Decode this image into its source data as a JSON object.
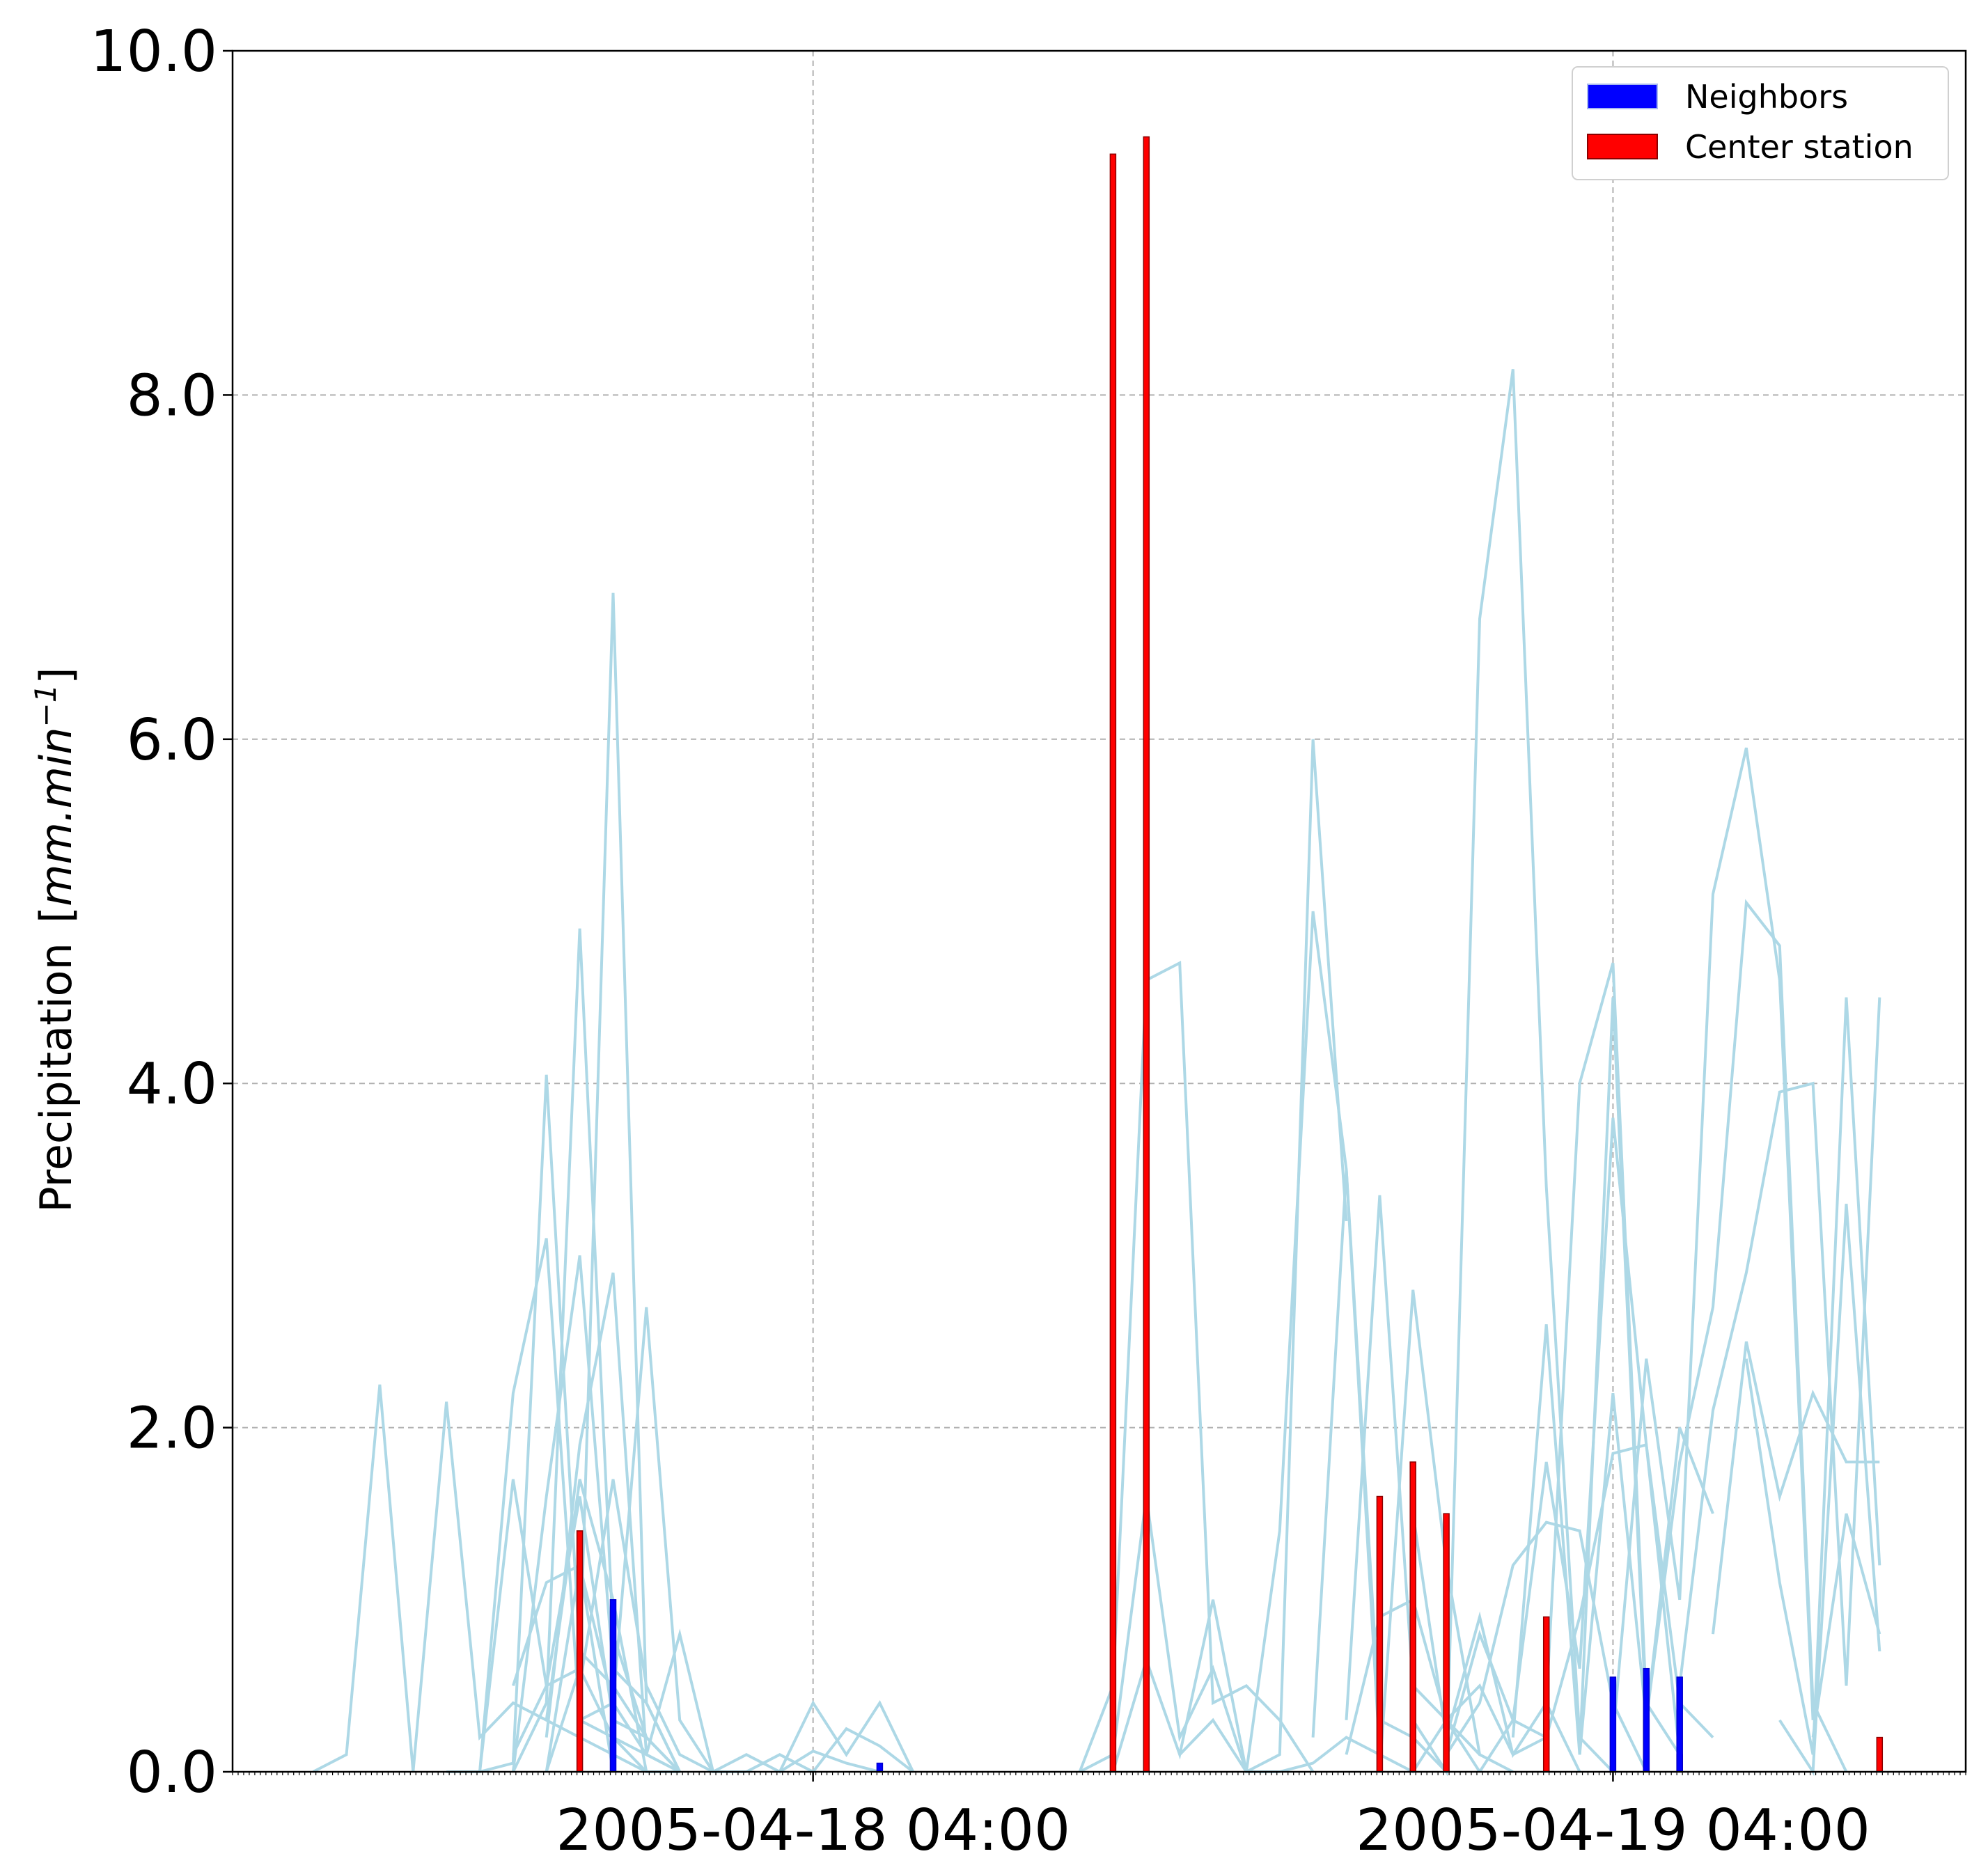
{
  "chart_data": {
    "type": "bar",
    "title": "",
    "xlabel": "",
    "ylabel": "Precipitation",
    "ylabel_unit_math": "[mm.min⁻¹]",
    "ylabel_unit_parts": {
      "open": "[",
      "body": "mm.min",
      "sup": "−1",
      "close": "]"
    },
    "ylim": [
      0,
      10
    ],
    "y_ticks": [
      "0.0",
      "2.0",
      "4.0",
      "6.0",
      "8.0",
      "10.0"
    ],
    "x_unit": "minutes since 2005-04-17 10:35",
    "xlim": [
      0,
      3120
    ],
    "x_ticks": [
      {
        "label": "2005-04-18 04:00",
        "x": 1045
      },
      {
        "label": "2005-04-19 04:00",
        "x": 2485
      }
    ],
    "grid": true,
    "legend_position": "top-right",
    "legend": [
      {
        "label": "Neighbors",
        "color": "#0000ff",
        "edge": "#a8b8f0"
      },
      {
        "label": "Center station",
        "color": "#ff0000",
        "edge": "#8b0000"
      }
    ],
    "series": [
      {
        "name": "Center station",
        "kind": "bar",
        "color": "#ff0000",
        "points": [
          {
            "x": 625,
            "y": 1.4
          },
          {
            "x": 1585,
            "y": 9.4
          },
          {
            "x": 1645,
            "y": 9.5
          },
          {
            "x": 2065,
            "y": 1.6
          },
          {
            "x": 2125,
            "y": 1.8
          },
          {
            "x": 2185,
            "y": 1.5
          },
          {
            "x": 2365,
            "y": 0.9
          },
          {
            "x": 2545,
            "y": 0.3
          },
          {
            "x": 2605,
            "y": 0.1
          },
          {
            "x": 2965,
            "y": 0.2
          }
        ]
      },
      {
        "name": "Neighbors",
        "kind": "bar",
        "color": "#0000ff",
        "points": [
          {
            "x": 685,
            "y": 1.0
          },
          {
            "x": 1165,
            "y": 0.05
          },
          {
            "x": 2485,
            "y": 0.55
          },
          {
            "x": 2545,
            "y": 0.6
          },
          {
            "x": 2605,
            "y": 0.55
          }
        ]
      }
    ],
    "neighbor_lines": [
      {
        "x": [
          145,
          205,
          265,
          325,
          385,
          445,
          505,
          565,
          625,
          685,
          745,
          805
        ],
        "y": [
          0.0,
          0.1,
          2.25,
          0.0,
          2.15,
          0.2,
          0.4,
          0.3,
          0.2,
          0.1,
          0.0,
          0.0
        ]
      },
      {
        "x": [
          385,
          445,
          505,
          565,
          625,
          685,
          745
        ],
        "y": [
          0.0,
          0.0,
          1.7,
          0.5,
          0.6,
          0.2,
          0.0
        ]
      },
      {
        "x": [
          445,
          505,
          565,
          625,
          685,
          745,
          805
        ],
        "y": [
          0.0,
          0.05,
          4.05,
          0.7,
          0.5,
          0.2,
          0.0
        ]
      },
      {
        "x": [
          445,
          505,
          565,
          625,
          685,
          745,
          805
        ],
        "y": [
          0.0,
          2.2,
          3.1,
          0.3,
          0.4,
          0.1,
          0.0
        ]
      },
      {
        "x": [
          505,
          565,
          625,
          685,
          745,
          805
        ],
        "y": [
          0.0,
          0.4,
          4.9,
          0.8,
          0.2,
          0.0
        ]
      },
      {
        "x": [
          505,
          565,
          625,
          685,
          745,
          805
        ],
        "y": [
          0.0,
          1.6,
          3.0,
          0.6,
          0.4,
          0.0
        ]
      },
      {
        "x": [
          505,
          565,
          625,
          685,
          745,
          805
        ],
        "y": [
          0.1,
          0.5,
          1.6,
          0.3,
          0.2,
          0.0
        ]
      },
      {
        "x": [
          565,
          625,
          685,
          745,
          805
        ],
        "y": [
          0.0,
          0.6,
          6.85,
          0.4,
          0.0
        ]
      },
      {
        "x": [
          565,
          625,
          685,
          745,
          805
        ],
        "y": [
          0.2,
          1.9,
          2.9,
          0.1,
          0.0
        ]
      },
      {
        "x": [
          565,
          625,
          685,
          745,
          805,
          865
        ],
        "y": [
          0.0,
          1.2,
          0.4,
          2.7,
          0.3,
          0.0
        ]
      },
      {
        "x": [
          625,
          685,
          745,
          805,
          865
        ],
        "y": [
          0.5,
          1.7,
          0.5,
          0.1,
          0.0
        ]
      },
      {
        "x": [
          625,
          685,
          745,
          805,
          865,
          925
        ],
        "y": [
          0.3,
          0.2,
          0.1,
          0.8,
          0.0,
          0.0
        ]
      },
      {
        "x": [
          565,
          625,
          685,
          745
        ],
        "y": [
          0.3,
          1.7,
          1.0,
          0.0
        ]
      },
      {
        "x": [
          505,
          565,
          625,
          685
        ],
        "y": [
          0.5,
          1.1,
          1.2,
          0.0
        ]
      },
      {
        "x": [
          865,
          925,
          985,
          1045,
          1105,
          1165,
          1225
        ],
        "y": [
          0.0,
          0.1,
          0.0,
          0.4,
          0.1,
          0.4,
          0.0
        ]
      },
      {
        "x": [
          925,
          985,
          1045,
          1105,
          1165,
          1225
        ],
        "y": [
          0.0,
          0.1,
          0.0,
          0.25,
          0.15,
          0.0
        ]
      },
      {
        "x": [
          985,
          1045,
          1105,
          1165
        ],
        "y": [
          0.0,
          0.12,
          0.05,
          0.0
        ]
      },
      {
        "x": [
          1525,
          1585,
          1645,
          1705,
          1765,
          1825,
          1885,
          1945
        ],
        "y": [
          0.0,
          0.5,
          4.6,
          4.7,
          0.4,
          0.5,
          0.3,
          0.0
        ]
      },
      {
        "x": [
          1525,
          1585,
          1645,
          1705,
          1765,
          1825
        ],
        "y": [
          0.0,
          0.1,
          1.6,
          0.2,
          0.6,
          0.0
        ]
      },
      {
        "x": [
          1585,
          1645,
          1705,
          1765,
          1825,
          1885
        ],
        "y": [
          0.0,
          0.65,
          0.1,
          1.0,
          0.0,
          0.0
        ]
      },
      {
        "x": [
          1705,
          1765,
          1825,
          1885,
          1945,
          2005
        ],
        "y": [
          0.1,
          0.3,
          0.0,
          0.1,
          6.0,
          3.2
        ]
      },
      {
        "x": [
          1825,
          1885,
          1945,
          2005,
          2065
        ],
        "y": [
          0.0,
          1.4,
          5.0,
          3.5,
          0.1
        ]
      },
      {
        "x": [
          1945,
          2005,
          2065,
          2125,
          2185
        ],
        "y": [
          0.2,
          3.5,
          0.3,
          0.2,
          0.0
        ]
      },
      {
        "x": [
          2005,
          2065,
          2125,
          2185,
          2245
        ],
        "y": [
          0.3,
          3.35,
          0.5,
          0.3,
          0.1
        ]
      },
      {
        "x": [
          2065,
          2125,
          2185,
          2245,
          2305
        ],
        "y": [
          0.0,
          2.8,
          1.2,
          0.1,
          0.0
        ]
      },
      {
        "x": [
          2125,
          2185,
          2245,
          2305,
          2365,
          2425,
          2485
        ],
        "y": [
          0.3,
          0.0,
          6.7,
          8.15,
          3.4,
          0.2,
          0.0
        ]
      },
      {
        "x": [
          2185,
          2245,
          2305,
          2365,
          2425,
          2485,
          2545
        ],
        "y": [
          0.1,
          0.4,
          1.2,
          1.45,
          1.4,
          0.4,
          0.0
        ]
      },
      {
        "x": [
          2305,
          2365,
          2425,
          2485,
          2545
        ],
        "y": [
          0.2,
          2.6,
          0.1,
          4.5,
          0.3
        ]
      },
      {
        "x": [
          2365,
          2425,
          2485,
          2545,
          2605
        ],
        "y": [
          0.4,
          4.0,
          4.7,
          0.4,
          0.1
        ]
      },
      {
        "x": [
          2425,
          2485,
          2545,
          2605,
          2665
        ],
        "y": [
          0.1,
          2.2,
          0.3,
          2.0,
          1.5
        ]
      },
      {
        "x": [
          2485,
          2545,
          2605,
          2665,
          2725,
          2785,
          2845
        ],
        "y": [
          0.2,
          2.4,
          1.0,
          5.1,
          5.95,
          4.6,
          0.3
        ]
      },
      {
        "x": [
          2545,
          2605,
          2665,
          2725,
          2785,
          2845,
          2905
        ],
        "y": [
          0.3,
          1.8,
          2.7,
          5.05,
          4.8,
          0.4,
          0.0
        ]
      },
      {
        "x": [
          2605,
          2665,
          2725,
          2785,
          2845,
          2905,
          2965
        ],
        "y": [
          0.5,
          2.1,
          2.9,
          3.95,
          4.0,
          0.5,
          4.5
        ]
      },
      {
        "x": [
          2665,
          2725,
          2785,
          2845,
          2905,
          2965
        ],
        "y": [
          0.8,
          2.5,
          1.6,
          2.2,
          1.8,
          1.8
        ]
      },
      {
        "x": [
          2725,
          2785,
          2845,
          2905,
          2965
        ],
        "y": [
          2.4,
          1.1,
          0.1,
          4.5,
          1.2
        ]
      },
      {
        "x": [
          2785,
          2845,
          2905,
          2965
        ],
        "y": [
          0.3,
          0.0,
          3.3,
          0.7
        ]
      },
      {
        "x": [
          2845,
          2905,
          2965
        ],
        "y": [
          0.2,
          1.5,
          0.8
        ]
      },
      {
        "x": [
          2005,
          2065,
          2125,
          2185,
          2245,
          2305,
          2365
        ],
        "y": [
          0.1,
          0.9,
          1.0,
          0.3,
          0.5,
          0.1,
          0.2
        ]
      },
      {
        "x": [
          2125,
          2185,
          2245,
          2305,
          2365,
          2425
        ],
        "y": [
          1.5,
          0.2,
          0.9,
          0.1,
          0.4,
          0.0
        ]
      },
      {
        "x": [
          2185,
          2245,
          2305,
          2365,
          2425,
          2485,
          2545,
          2605
        ],
        "y": [
          0.1,
          0.8,
          0.3,
          1.8,
          0.6,
          3.8,
          1.9,
          0.1
        ]
      },
      {
        "x": [
          1885,
          1945,
          2005,
          2065,
          2125,
          2185,
          2245
        ],
        "y": [
          0.0,
          0.05,
          0.2,
          0.1,
          0.0,
          0.3,
          0.0
        ]
      },
      {
        "x": [
          2245,
          2305,
          2365,
          2425,
          2485,
          2545,
          2605,
          2665
        ],
        "y": [
          0.0,
          0.3,
          0.2,
          0.9,
          1.85,
          1.9,
          0.4,
          0.2
        ]
      }
    ]
  }
}
